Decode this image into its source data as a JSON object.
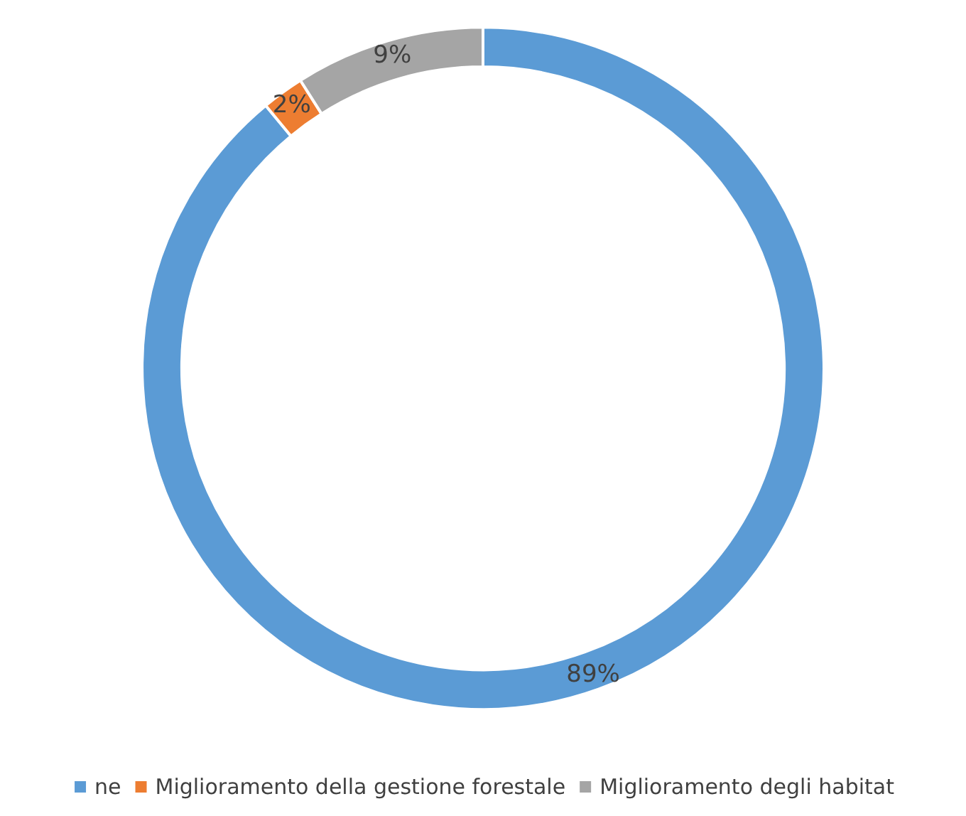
{
  "chart_data": {
    "type": "donut",
    "categories": [
      "ne",
      "Miglioramento della gestione forestale",
      "Miglioramento degli habitat"
    ],
    "values": [
      89,
      2,
      9
    ],
    "colors": [
      "#5b9bd5",
      "#ed7d31",
      "#a5a5a5"
    ],
    "value_labels": [
      "89%",
      "2%",
      "9%"
    ],
    "legend": "bottom"
  }
}
